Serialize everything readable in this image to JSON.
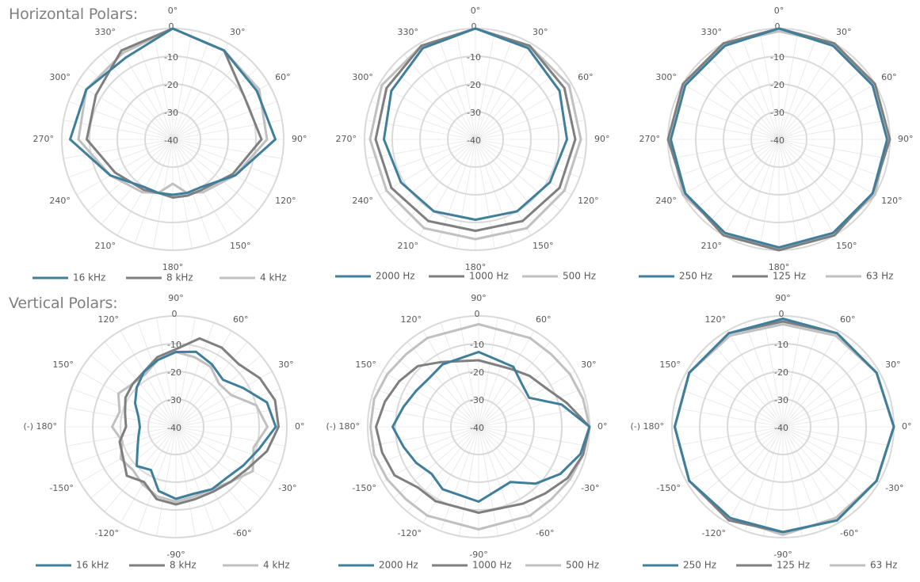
{
  "sections": {
    "horizontal_title": "Horizontal Polars:",
    "vertical_title": "Vertical Polars:"
  },
  "colors": {
    "series1": "#3f7f9b",
    "series2": "#7f7f7f",
    "series3": "#c0c0c0"
  },
  "chart_data": [
    {
      "type": "polar-line",
      "id": "h-high",
      "group": "Horizontal Polars",
      "r_ticks": [
        0,
        -10,
        -20,
        -30,
        -40
      ],
      "r_range": [
        -40,
        0
      ],
      "angle_labels": [
        {
          "deg": 0,
          "label": "0°"
        },
        {
          "deg": 30,
          "label": "30°"
        },
        {
          "deg": 60,
          "label": "60°"
        },
        {
          "deg": 90,
          "label": "90°"
        },
        {
          "deg": 120,
          "label": "120°"
        },
        {
          "deg": 150,
          "label": "150°"
        },
        {
          "deg": 180,
          "label": "180°"
        },
        {
          "deg": 210,
          "label": "210°"
        },
        {
          "deg": 240,
          "label": "240°"
        },
        {
          "deg": 270,
          "label": "270°"
        },
        {
          "deg": 300,
          "label": "300°"
        },
        {
          "deg": 330,
          "label": "330°"
        }
      ],
      "angles": [
        0,
        30,
        60,
        90,
        120,
        150,
        165,
        180,
        195,
        210,
        240,
        270,
        300,
        330
      ],
      "series": [
        {
          "name": "16 kHz",
          "values": [
            0,
            -3,
            -5,
            -3,
            -14,
            -20,
            -20,
            -20,
            -20,
            -20,
            -14,
            -3,
            -4,
            -6
          ]
        },
        {
          "name": "8 kHz",
          "values": [
            0,
            -3,
            -10,
            -8,
            -15,
            -19,
            -19,
            -19,
            -20,
            -19,
            -16,
            -9,
            -8,
            -3
          ]
        },
        {
          "name": "4 kHz",
          "values": [
            0,
            -3,
            -4,
            -6,
            -14,
            -18,
            -20,
            -24,
            -20,
            -18,
            -14,
            -6,
            -4,
            -4
          ]
        }
      ]
    },
    {
      "type": "polar-line",
      "id": "h-mid",
      "group": "Horizontal Polars",
      "r_ticks": [
        0,
        -10,
        -20,
        -30,
        -40
      ],
      "r_range": [
        -40,
        0
      ],
      "angle_labels": [
        {
          "deg": 0,
          "label": "0°"
        },
        {
          "deg": 30,
          "label": "30°"
        },
        {
          "deg": 60,
          "label": "60°"
        },
        {
          "deg": 90,
          "label": "90°"
        },
        {
          "deg": 120,
          "label": "120°"
        },
        {
          "deg": 150,
          "label": "150°"
        },
        {
          "deg": 180,
          "label": "180°"
        },
        {
          "deg": 210,
          "label": "210°"
        },
        {
          "deg": 240,
          "label": "240°"
        },
        {
          "deg": 270,
          "label": "270°"
        },
        {
          "deg": 300,
          "label": "300°"
        },
        {
          "deg": 330,
          "label": "330°"
        }
      ],
      "angles": [
        0,
        30,
        60,
        90,
        120,
        150,
        180,
        210,
        240,
        270,
        300,
        330
      ],
      "series": [
        {
          "name": "2000 Hz",
          "values": [
            0,
            -2,
            -5,
            -7,
            -9,
            -10,
            -11,
            -10,
            -9,
            -7,
            -5,
            -2
          ]
        },
        {
          "name": "1000 Hz",
          "values": [
            0,
            -1,
            -3,
            -4,
            -5,
            -6,
            -7,
            -6,
            -5,
            -4,
            -3,
            -1
          ]
        },
        {
          "name": "500 Hz",
          "values": [
            0,
            -1,
            -1,
            -2,
            -3,
            -3,
            -4,
            -3,
            -3,
            -2,
            -1,
            -1
          ]
        }
      ]
    },
    {
      "type": "polar-line",
      "id": "h-low",
      "group": "Horizontal Polars",
      "r_ticks": [
        0,
        -10,
        -20,
        -30,
        -40
      ],
      "r_range": [
        -40,
        0
      ],
      "angle_labels": [
        {
          "deg": 0,
          "label": "0°"
        },
        {
          "deg": 30,
          "label": "30°"
        },
        {
          "deg": 60,
          "label": "60°"
        },
        {
          "deg": 90,
          "label": "90°"
        },
        {
          "deg": 120,
          "label": "120°"
        },
        {
          "deg": 150,
          "label": "150°"
        },
        {
          "deg": 180,
          "label": "180°"
        },
        {
          "deg": 210,
          "label": "210°"
        },
        {
          "deg": 240,
          "label": "240°"
        },
        {
          "deg": 270,
          "label": "270°"
        },
        {
          "deg": 300,
          "label": "300°"
        },
        {
          "deg": 330,
          "label": "330°"
        }
      ],
      "angles": [
        0,
        30,
        60,
        90,
        120,
        150,
        180,
        210,
        240,
        270,
        300,
        330
      ],
      "series": [
        {
          "name": "250 Hz",
          "values": [
            0,
            -1,
            -1,
            -1,
            -1,
            -1,
            -1,
            -1,
            -1,
            -1,
            -1,
            -1
          ]
        },
        {
          "name": "125 Hz",
          "values": [
            0,
            0,
            0,
            0,
            -1,
            0,
            0,
            0,
            -1,
            0,
            0,
            0
          ]
        },
        {
          "name": "63 Hz",
          "values": [
            -1,
            0,
            -1,
            -1,
            0,
            -1,
            0,
            -1,
            0,
            -1,
            -1,
            0
          ]
        }
      ]
    },
    {
      "type": "polar-line",
      "id": "v-high",
      "group": "Vertical Polars",
      "r_ticks": [
        0,
        -10,
        -20,
        -30,
        -40
      ],
      "r_range": [
        -40,
        0
      ],
      "angle_labels": [
        {
          "deg": 90,
          "label": "90°"
        },
        {
          "deg": 60,
          "label": "60°"
        },
        {
          "deg": 30,
          "label": "30°"
        },
        {
          "deg": 0,
          "label": "0°"
        },
        {
          "deg": -30,
          "label": "-30°"
        },
        {
          "deg": -60,
          "label": "-60°"
        },
        {
          "deg": -90,
          "label": "-90°"
        },
        {
          "deg": -120,
          "label": "-120°"
        },
        {
          "deg": -150,
          "label": "-150°"
        },
        {
          "deg": 180,
          "label": "(-) 180°"
        },
        {
          "deg": 150,
          "label": "150°"
        },
        {
          "deg": 120,
          "label": "120°"
        }
      ],
      "angles": [
        90,
        75,
        60,
        45,
        30,
        15,
        0,
        -15,
        -30,
        -45,
        -60,
        -75,
        -90,
        -105,
        -120,
        -135,
        -150,
        -165,
        180,
        165,
        150,
        135,
        120,
        105
      ],
      "series": [
        {
          "name": "16 kHz",
          "values": [
            -13,
            -12,
            -14,
            -16,
            -12,
            -6,
            -4,
            -9,
            -12,
            -14,
            -14,
            -15,
            -14,
            -16,
            -22,
            -20,
            -24,
            -26,
            -27,
            -26,
            -23,
            -20,
            -17,
            -15
          ]
        },
        {
          "name": "8 kHz",
          "values": [
            -12,
            -7,
            -7,
            -8,
            -5,
            -3,
            -3,
            -6,
            -10,
            -12,
            -13,
            -13,
            -12,
            -13,
            -17,
            -15,
            -18,
            -19,
            -22,
            -21,
            -19,
            -18,
            -17,
            -14
          ]
        },
        {
          "name": "4 kHz",
          "values": [
            -13,
            -14,
            -15,
            -18,
            -17,
            -10,
            -7,
            -11,
            -8,
            -12,
            -14,
            -14,
            -13,
            -14,
            -16,
            -18,
            -17,
            -20,
            -17,
            -19,
            -16,
            -18,
            -18,
            -15
          ]
        }
      ]
    },
    {
      "type": "polar-line",
      "id": "v-mid",
      "group": "Vertical Polars",
      "r_ticks": [
        0,
        -10,
        -20,
        -30,
        -40
      ],
      "r_range": [
        -40,
        0
      ],
      "angle_labels": [
        {
          "deg": 90,
          "label": "90°"
        },
        {
          "deg": 60,
          "label": "60°"
        },
        {
          "deg": 30,
          "label": "30°"
        },
        {
          "deg": 0,
          "label": "0°"
        },
        {
          "deg": -30,
          "label": "-30°"
        },
        {
          "deg": -60,
          "label": "-60°"
        },
        {
          "deg": -90,
          "label": "-90°"
        },
        {
          "deg": -120,
          "label": "-120°"
        },
        {
          "deg": -150,
          "label": "-150°"
        },
        {
          "deg": 180,
          "label": "(-) 180°"
        },
        {
          "deg": 150,
          "label": "150°"
        },
        {
          "deg": 120,
          "label": "120°"
        }
      ],
      "angles": [
        90,
        60,
        45,
        30,
        15,
        0,
        -15,
        -30,
        -45,
        -60,
        -90,
        -120,
        -135,
        -150,
        -165,
        180,
        165,
        150,
        135,
        120
      ],
      "series": [
        {
          "name": "2000 Hz",
          "values": [
            -13,
            -15,
            -18,
            -19,
            -9,
            0,
            -2,
            -6,
            -11,
            -17,
            -13,
            -14,
            -16,
            -14,
            -12,
            -9,
            -12,
            -14,
            -15,
            -14
          ]
        },
        {
          "name": "1000 Hz",
          "values": [
            -16,
            -16,
            -14,
            -12,
            -7,
            0,
            -1,
            -3,
            -6,
            -8,
            -9,
            -9,
            -9,
            -5,
            -4,
            -3,
            -5,
            -7,
            -9,
            -13
          ]
        },
        {
          "name": "500 Hz",
          "values": [
            -3,
            -3,
            -3,
            -2,
            -1,
            0,
            -1,
            -2,
            -3,
            -3,
            -3,
            -3,
            -3,
            -2,
            -1,
            -1,
            -1,
            -2,
            -3,
            -3
          ]
        }
      ]
    },
    {
      "type": "polar-line",
      "id": "v-low",
      "group": "Vertical Polars",
      "r_ticks": [
        0,
        -10,
        -20,
        -30,
        -40
      ],
      "r_range": [
        -40,
        0
      ],
      "angle_labels": [
        {
          "deg": 90,
          "label": "90°"
        },
        {
          "deg": 60,
          "label": "60°"
        },
        {
          "deg": 30,
          "label": "30°"
        },
        {
          "deg": 0,
          "label": "0°"
        },
        {
          "deg": -30,
          "label": "-30°"
        },
        {
          "deg": -60,
          "label": "-60°"
        },
        {
          "deg": -90,
          "label": "-90°"
        },
        {
          "deg": -120,
          "label": "-120°"
        },
        {
          "deg": -150,
          "label": "-150°"
        },
        {
          "deg": 180,
          "label": "(-) 180°"
        },
        {
          "deg": 150,
          "label": "150°"
        },
        {
          "deg": 120,
          "label": "120°"
        }
      ],
      "angles": [
        90,
        60,
        30,
        0,
        -30,
        -60,
        -90,
        -120,
        -150,
        180,
        150,
        120
      ],
      "series": [
        {
          "name": "250 Hz",
          "values": [
            -1,
            -1,
            -1,
            0,
            -1,
            -1,
            -2,
            -2,
            -1,
            -1,
            -1,
            -1
          ]
        },
        {
          "name": "125 Hz",
          "values": [
            -2,
            -1,
            -1,
            0,
            -1,
            -1,
            -2,
            -1,
            -1,
            -1,
            -1,
            -1
          ]
        },
        {
          "name": "63 Hz",
          "values": [
            -3,
            -2,
            -1,
            0,
            -1,
            -2,
            -1,
            -2,
            -1,
            -1,
            -1,
            -2
          ]
        }
      ]
    }
  ]
}
